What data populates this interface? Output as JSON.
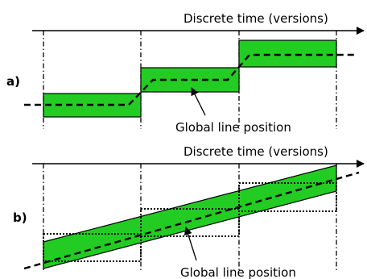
{
  "panels": [
    {
      "id": "a",
      "label": "a)",
      "axis_label": "Discrete time (versions)",
      "curve_label": "Global line position"
    },
    {
      "id": "b",
      "label": "b)",
      "axis_label": "Discrete time (versions)",
      "curve_label": "Global line position"
    }
  ],
  "colors": {
    "band_fill": "#22cc22",
    "stroke": "#000000"
  }
}
